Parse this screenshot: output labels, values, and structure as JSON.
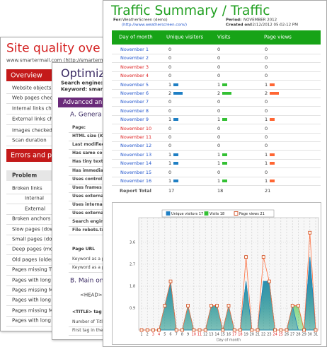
{
  "back": {
    "title": "Site quality ove",
    "url": "www.smartermail.com (http://smarterm",
    "overview": {
      "header": "Overview",
      "rows": [
        "Website objects",
        "Web pages check",
        "Internal links che",
        "External links che",
        "Images checked",
        "Scan duration"
      ]
    },
    "errors": {
      "header": "Errors and pr",
      "column": "Problem",
      "rows": [
        "Broken links",
        "Internal",
        "External",
        "Broken anchors",
        "Slow pages (dow",
        "Small pages (dow",
        "Deep pages (mo",
        "Old pages (older",
        "Pages missing Tit",
        "Pages with long",
        "Pages missing M",
        "Pages with long",
        "Pages missing M",
        "Pages with long"
      ]
    }
  },
  "middle": {
    "title": "Optimiz",
    "search_engine": "Search engine:",
    "keyword": "Keyword: smarterm",
    "section": "Advanced an",
    "group_a": "A. Genera",
    "rows": [
      "Page:",
      "HTML size (Kb",
      "Last modified",
      "Has same colo",
      "Has tiny text",
      "Has immediate",
      "Uses control",
      "Uses frames",
      "Uses external",
      "Uses internal",
      "Uses external",
      "Search engine",
      "File robots.txt"
    ],
    "page_url": "Page URL",
    "keyword_rows": [
      "Keyword as a p",
      "Keyword as a p"
    ],
    "group_b": "B. Main on",
    "head": "<HEAD> e",
    "title_tag": "<TITLE> tag",
    "title_rows": [
      "Number of Title",
      "First tag in the"
    ]
  },
  "front": {
    "title": "Traffic Summary / Traffic",
    "for_label": "For:",
    "for_value": "WeatherScreen (demo)",
    "site": "(http://www.weatherscreen.com/)",
    "period_label": "Period:",
    "period_value": "NOVEMBER 2012",
    "created_label": "Created on:",
    "created_value": "02/12/2012  05:02:12 PM",
    "table": {
      "columns": [
        "Day of month",
        "Unique visitors",
        "Visits",
        "Page views"
      ],
      "rows": [
        {
          "day": "November 1",
          "unique": 0,
          "visits": 0,
          "views": 0,
          "weekend": false
        },
        {
          "day": "November 2",
          "unique": 0,
          "visits": 0,
          "views": 0,
          "weekend": false
        },
        {
          "day": "November 3",
          "unique": 0,
          "visits": 0,
          "views": 0,
          "weekend": true
        },
        {
          "day": "November 4",
          "unique": 0,
          "visits": 0,
          "views": 0,
          "weekend": true
        },
        {
          "day": "November 5",
          "unique": 1,
          "visits": 1,
          "views": 1,
          "weekend": false
        },
        {
          "day": "November 6",
          "unique": 2,
          "visits": 2,
          "views": 2,
          "weekend": false
        },
        {
          "day": "November 7",
          "unique": 0,
          "visits": 0,
          "views": 0,
          "weekend": false
        },
        {
          "day": "November 8",
          "unique": 0,
          "visits": 0,
          "views": 0,
          "weekend": false
        },
        {
          "day": "November 9",
          "unique": 1,
          "visits": 1,
          "views": 1,
          "weekend": false
        },
        {
          "day": "November 10",
          "unique": 0,
          "visits": 0,
          "views": 0,
          "weekend": true
        },
        {
          "day": "November 11",
          "unique": 0,
          "visits": 0,
          "views": 0,
          "weekend": true
        },
        {
          "day": "November 12",
          "unique": 0,
          "visits": 0,
          "views": 0,
          "weekend": false
        },
        {
          "day": "November 13",
          "unique": 1,
          "visits": 1,
          "views": 1,
          "weekend": false
        },
        {
          "day": "November 14",
          "unique": 1,
          "visits": 1,
          "views": 1,
          "weekend": false
        },
        {
          "day": "November 15",
          "unique": 0,
          "visits": 0,
          "views": 0,
          "weekend": false
        },
        {
          "day": "November 16",
          "unique": 1,
          "visits": 1,
          "views": 1,
          "weekend": false
        }
      ],
      "total": {
        "label": "Report Total",
        "unique": 17,
        "visits": 18,
        "views": 21
      }
    },
    "chart": {
      "type": "area",
      "x": [
        1,
        2,
        3,
        4,
        5,
        6,
        7,
        8,
        9,
        10,
        11,
        12,
        13,
        14,
        15,
        16,
        17,
        18,
        19,
        20,
        21,
        22,
        23,
        24,
        25,
        26,
        27,
        28,
        29,
        30,
        31
      ],
      "weekend_days": [
        3,
        4,
        10,
        11,
        17,
        18,
        24,
        25
      ],
      "xlabel": "Day of month",
      "ylim": [
        0,
        4.5
      ],
      "yticks": [
        0.9,
        1.8,
        2.7,
        3.6
      ],
      "grid": true,
      "series": [
        {
          "name": "Unique visitors 17",
          "color": "#1f7fc4",
          "values": [
            0,
            0,
            0,
            0,
            1,
            2,
            0,
            0,
            1,
            0,
            0,
            0,
            1,
            1,
            0,
            1,
            0,
            0,
            2,
            0,
            0,
            2,
            2,
            0,
            0,
            0,
            1,
            0,
            0,
            3,
            0
          ]
        },
        {
          "name": "Visits 18",
          "color": "#33c033",
          "values": [
            0,
            0,
            0,
            0,
            1,
            2,
            0,
            0,
            1,
            0,
            0,
            0,
            1,
            1,
            0,
            1,
            0,
            0,
            2,
            0,
            0,
            2,
            2,
            0,
            0,
            0,
            1,
            1,
            0,
            3,
            0
          ]
        },
        {
          "name": "Page views 21",
          "color": "#ff7040",
          "values": [
            0,
            0,
            0,
            0,
            1,
            2,
            0,
            0,
            1,
            0,
            0,
            0,
            1,
            1,
            0,
            1,
            0,
            0,
            3,
            0,
            0,
            3,
            2,
            0,
            0,
            0,
            1,
            1,
            0,
            4,
            0
          ]
        }
      ]
    }
  }
}
